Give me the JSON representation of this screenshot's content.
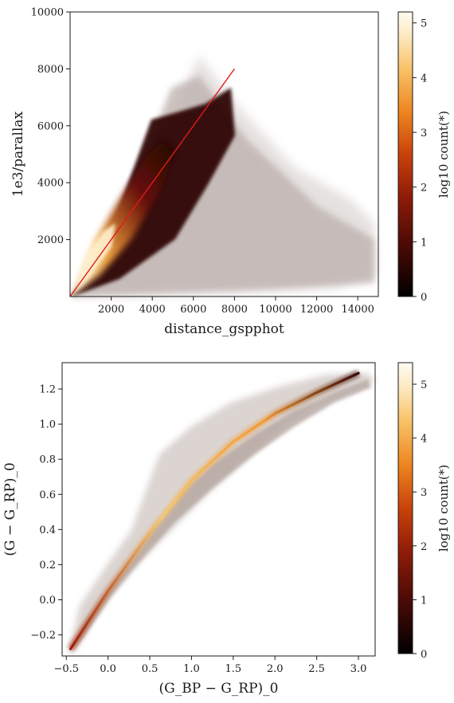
{
  "chart_data": [
    {
      "type": "heatmap",
      "title": "",
      "xlabel": "distance_gspphot",
      "ylabel": "1e3/parallax",
      "xlim": [
        0,
        15000
      ],
      "ylim": [
        0,
        10000
      ],
      "x_ticks": [
        "2000",
        "4000",
        "6000",
        "8000",
        "10000",
        "12000",
        "14000"
      ],
      "y_ticks": [
        "2000",
        "4000",
        "6000",
        "8000",
        "10000"
      ],
      "x_tick_values": [
        2000,
        4000,
        6000,
        8000,
        10000,
        12000,
        14000
      ],
      "y_tick_values": [
        2000,
        4000,
        6000,
        8000,
        10000
      ],
      "reference_line": {
        "x": [
          0,
          8000
        ],
        "y": [
          0,
          8000
        ],
        "color": "#e01a1a"
      },
      "colorbar": {
        "label": "log10 count(*)",
        "range": [
          0,
          5.2
        ],
        "ticks": [
          "0",
          "1",
          "2",
          "3",
          "4",
          "5"
        ],
        "tick_values": [
          0,
          1,
          2,
          3,
          4,
          5
        ]
      },
      "grid": false
    },
    {
      "type": "heatmap",
      "title": "",
      "xlabel": "(G_BP − G_RP)_0",
      "ylabel": "(G − G_RP)_0",
      "xlim": [
        -0.55,
        3.2
      ],
      "ylim": [
        -0.32,
        1.35
      ],
      "x_ticks": [
        "−0.5",
        "0.0",
        "0.5",
        "1.0",
        "1.5",
        "2.0",
        "2.5",
        "3.0"
      ],
      "y_ticks": [
        "−0.2",
        "0.0",
        "0.2",
        "0.4",
        "0.6",
        "0.8",
        "1.0",
        "1.2"
      ],
      "x_tick_values": [
        -0.5,
        0,
        0.5,
        1.0,
        1.5,
        2.0,
        2.5,
        3.0
      ],
      "y_tick_values": [
        -0.2,
        0,
        0.2,
        0.4,
        0.6,
        0.8,
        1.0,
        1.2
      ],
      "ridge": {
        "x": [
          -0.45,
          0.0,
          0.5,
          1.0,
          1.5,
          2.0,
          2.5,
          3.0
        ],
        "y": [
          -0.28,
          0.05,
          0.38,
          0.68,
          0.9,
          1.06,
          1.18,
          1.29
        ]
      },
      "colorbar": {
        "label": "log10 count(*)",
        "range": [
          0,
          5.4
        ],
        "ticks": [
          "0",
          "1",
          "2",
          "3",
          "4",
          "5"
        ],
        "tick_values": [
          0,
          1,
          2,
          3,
          4,
          5
        ]
      },
      "grid": false
    }
  ]
}
